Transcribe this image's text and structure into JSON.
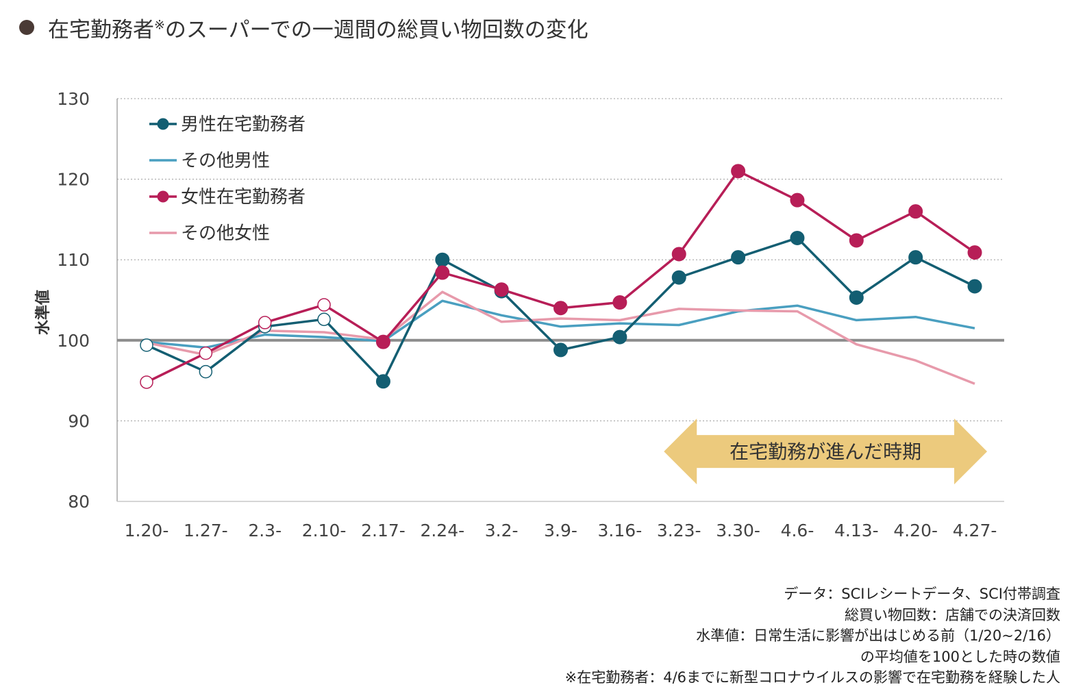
{
  "title": {
    "text": "在宅勤務者",
    "mark": "※",
    "rest": "のスーパーでの一週間の総買い物回数の変化"
  },
  "colors": {
    "bullet": "#4a3a35",
    "male_wfh": "#135e72",
    "other_male": "#4a9fc0",
    "female_wfh": "#b71e57",
    "other_female": "#e79aab",
    "baseline": "#8c8c8c",
    "grid": "#9a9a9a",
    "band": "#ecca7d"
  },
  "chart_data": {
    "type": "line",
    "title": "在宅勤務者※のスーパーでの一週間の総買い物回数の変化",
    "ylabel": "水準値",
    "xlabel": "",
    "ylim": [
      80,
      130
    ],
    "yticks": [
      80,
      90,
      100,
      110,
      120,
      130
    ],
    "baseline": 100,
    "categories": [
      "1.20-",
      "1.27-",
      "2.3-",
      "2.10-",
      "2.17-",
      "2.24-",
      "3.2-",
      "3.9-",
      "3.16-",
      "3.23-",
      "3.30-",
      "4.6-",
      "4.13-",
      "4.20-",
      "4.27-"
    ],
    "series": [
      {
        "name": "男性在宅勤務者",
        "key": "male_wfh",
        "markers": true,
        "values": [
          99.4,
          96.1,
          101.7,
          102.6,
          94.9,
          110.0,
          106.1,
          98.8,
          100.4,
          107.8,
          110.3,
          112.7,
          105.3,
          110.3,
          106.7
        ],
        "open_markers": [
          0,
          1,
          2,
          3
        ]
      },
      {
        "name": "その他男性",
        "key": "other_male",
        "markers": false,
        "values": [
          99.8,
          99.1,
          100.7,
          100.4,
          99.9,
          104.9,
          103.1,
          101.7,
          102.1,
          101.9,
          103.6,
          104.3,
          102.5,
          102.9,
          101.5
        ]
      },
      {
        "name": "女性在宅勤務者",
        "key": "female_wfh",
        "markers": true,
        "values": [
          94.8,
          98.4,
          102.2,
          104.4,
          99.8,
          108.4,
          106.3,
          104.0,
          104.7,
          110.7,
          121.0,
          117.4,
          112.4,
          116.0,
          110.9
        ],
        "open_markers": [
          0,
          1,
          2,
          3
        ]
      },
      {
        "name": "その他女性",
        "key": "other_female",
        "markers": false,
        "values": [
          99.7,
          98.2,
          101.2,
          101.0,
          100.1,
          106.0,
          102.3,
          102.7,
          102.5,
          103.9,
          103.7,
          103.6,
          99.5,
          97.5,
          94.6
        ]
      }
    ],
    "legend_placement": "top-left",
    "grid": "horizontal-dotted",
    "annotation": {
      "text": "在宅勤務が進んだ時期",
      "from_category": "3.23-",
      "to_category": "4.27-",
      "y": 86.2
    }
  },
  "notes": [
    "データ：SCIレシートデータ、SCI付帯調査",
    "総買い物回数：店舗での決済回数",
    "水準値：日常生活に影響が出はじめる前（1/20~2/16）",
    "の平均値を100とした時の数値",
    "※在宅勤務者：4/6までに新型コロナウイルスの影響で在宅勤務を経験した人"
  ]
}
